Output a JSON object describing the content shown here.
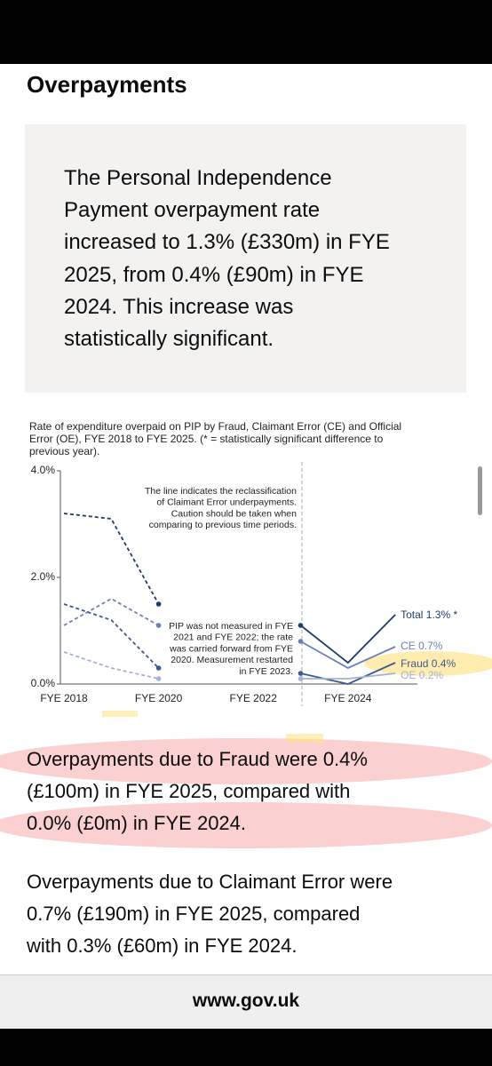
{
  "heading": "Overpayments",
  "callout": {
    "lines": [
      "The Personal Independence",
      "Payment overpayment rate",
      "increased to 1.3% (£330m) in FYE",
      "2025, from 0.4% (£90m) in FYE",
      "2024. This increase was",
      "statistically significant."
    ]
  },
  "chart_data": {
    "type": "line",
    "title": [
      "Rate of expenditure overpaid on PIP by Fraud, Claimant Error (CE) and Official",
      "Error (OE), FYE 2018 to FYE 2025. (* = statistically significant difference to",
      "previous year)."
    ],
    "categories": [
      "FYE 2018",
      null,
      "FYE 2020",
      null,
      "FYE 2022",
      null,
      "FYE 2024",
      null
    ],
    "ylim": [
      0,
      4
    ],
    "yticks": [
      {
        "value": 0,
        "label": "0.0%"
      },
      {
        "value": 2,
        "label": "2.0%"
      },
      {
        "value": 4,
        "label": "4.0%"
      }
    ],
    "grid": false,
    "series": [
      {
        "name": "Total 1.3% *",
        "color": "#1d3c6b",
        "values": [
          3.2,
          3.1,
          1.5,
          null,
          null,
          1.1,
          0.4,
          1.3
        ],
        "styles": [
          "dashed",
          "solid"
        ]
      },
      {
        "name": "CE 0.7%",
        "color": "#6c80b4",
        "values": [
          1.1,
          1.6,
          1.1,
          null,
          null,
          0.8,
          0.3,
          0.7
        ],
        "styles": [
          "dashed",
          "solid"
        ]
      },
      {
        "name": "Fraud 0.4%",
        "color": "#3d5a8e",
        "values": [
          1.5,
          1.2,
          0.3,
          null,
          null,
          0.2,
          0.0,
          0.4
        ],
        "styles": [
          "dashed",
          "solid"
        ]
      },
      {
        "name": "OE 0.2%",
        "color": "#a3b2d6",
        "values": [
          0.6,
          0.3,
          0.1,
          null,
          null,
          0.1,
          0.1,
          0.2
        ],
        "styles": [
          "dashed",
          "solid"
        ]
      }
    ],
    "annotations": [
      {
        "lines": [
          "The line indicates the reclassification",
          "of Claimant Error underpayments.",
          "Caution should be taken when",
          "comparing to previous time periods."
        ]
      },
      {
        "lines": [
          "PIP was not measured in FYE",
          "2021 and FYE 2022; the rate",
          "was carried forward from FYE",
          "2020. Measurement restarted",
          "in FYE 2023."
        ]
      }
    ]
  },
  "paragraphs": [
    {
      "lines": [
        "Overpayments due to Fraud were 0.4%",
        "(£100m) in FYE 2025, compared with",
        "0.0% (£0m) in FYE 2024."
      ]
    },
    {
      "lines": [
        "Overpayments due to Claimant Error were",
        "0.7% (£190m) in FYE 2025, compared",
        "with 0.3% (£60m) in FYE 2024."
      ]
    }
  ],
  "footer": "www.gov.uk"
}
